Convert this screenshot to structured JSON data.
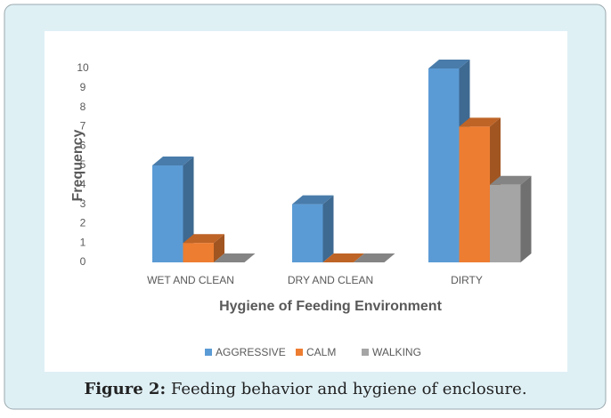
{
  "chart_data": {
    "type": "bar3d",
    "categories": [
      "WET AND CLEAN",
      "DRY AND CLEAN",
      "DIRTY"
    ],
    "series": [
      {
        "name": "AGGRESSIVE",
        "color": "#5b9bd5",
        "values": [
          5,
          3,
          10
        ]
      },
      {
        "name": "CALM",
        "color": "#ed7d31",
        "values": [
          1,
          0,
          7
        ]
      },
      {
        "name": "WALKING",
        "color": "#a5a5a5",
        "values": [
          0,
          0,
          4
        ]
      }
    ],
    "ylim": [
      0,
      10
    ],
    "yticks": [
      0,
      1,
      2,
      3,
      4,
      5,
      6,
      7,
      8,
      9,
      10
    ],
    "ylabel": "Frequency",
    "xlabel": "Hygiene of Feeding Environment",
    "legend": "bottom"
  },
  "figure": {
    "label": "Figure 2:",
    "caption": "Feeding behavior and hygiene of enclosure."
  }
}
